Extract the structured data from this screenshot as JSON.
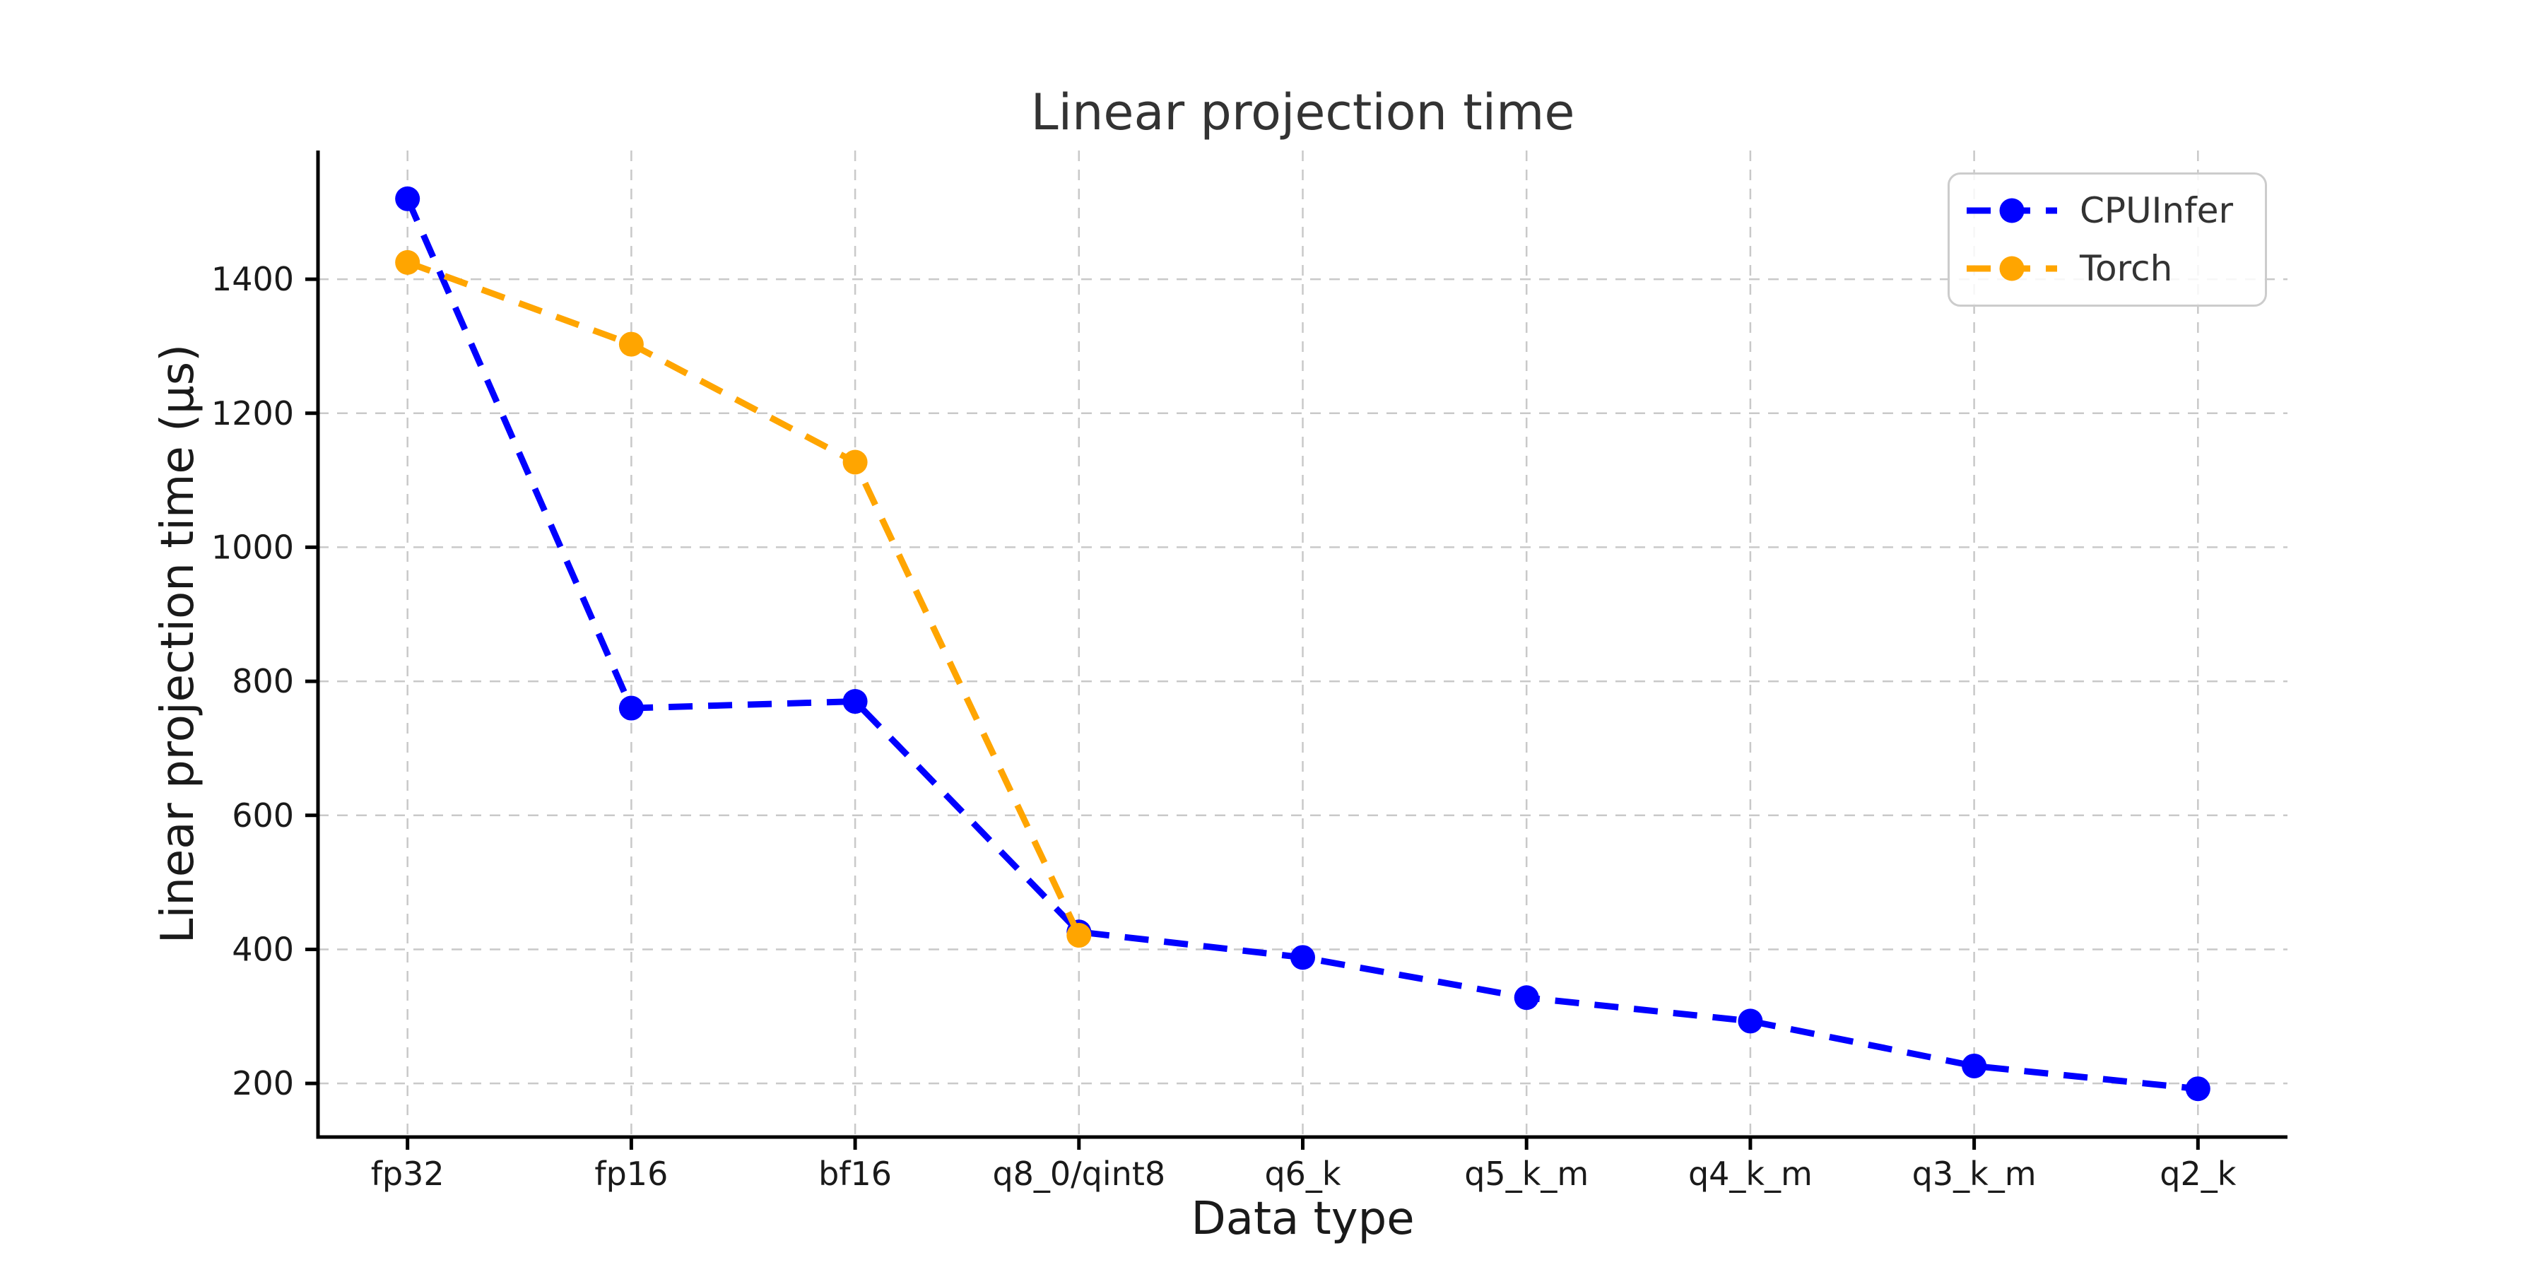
{
  "chart_data": {
    "type": "line",
    "title": "Linear projection time",
    "xlabel": "Data type",
    "ylabel": "Linear projection time (μs)",
    "categories": [
      "fp32",
      "fp16",
      "bf16",
      "q8_0/qint8",
      "q6_k",
      "q5_k_m",
      "q4_k_m",
      "q3_k_m",
      "q2_k"
    ],
    "series": [
      {
        "name": "CPUInfer",
        "color": "#0000ff",
        "linestyle": "dashed",
        "marker": "circle",
        "values": [
          1520,
          760,
          770,
          426,
          388,
          328,
          293,
          226,
          192
        ]
      },
      {
        "name": "Torch",
        "color": "#ffa500",
        "linestyle": "dashed",
        "marker": "circle",
        "values": [
          1425,
          1303,
          1127,
          421
        ]
      }
    ],
    "yticks": [
      200,
      400,
      600,
      800,
      1000,
      1200,
      1400
    ],
    "ylim": [
      120,
      1592
    ],
    "xlim": [
      -0.4,
      8.4
    ],
    "grid": true,
    "grid_color": "#c9c9c9",
    "spine_color": "#000000",
    "text_color": "#1a1a1a",
    "background": "#ffffff",
    "legend_position": "upper right"
  }
}
